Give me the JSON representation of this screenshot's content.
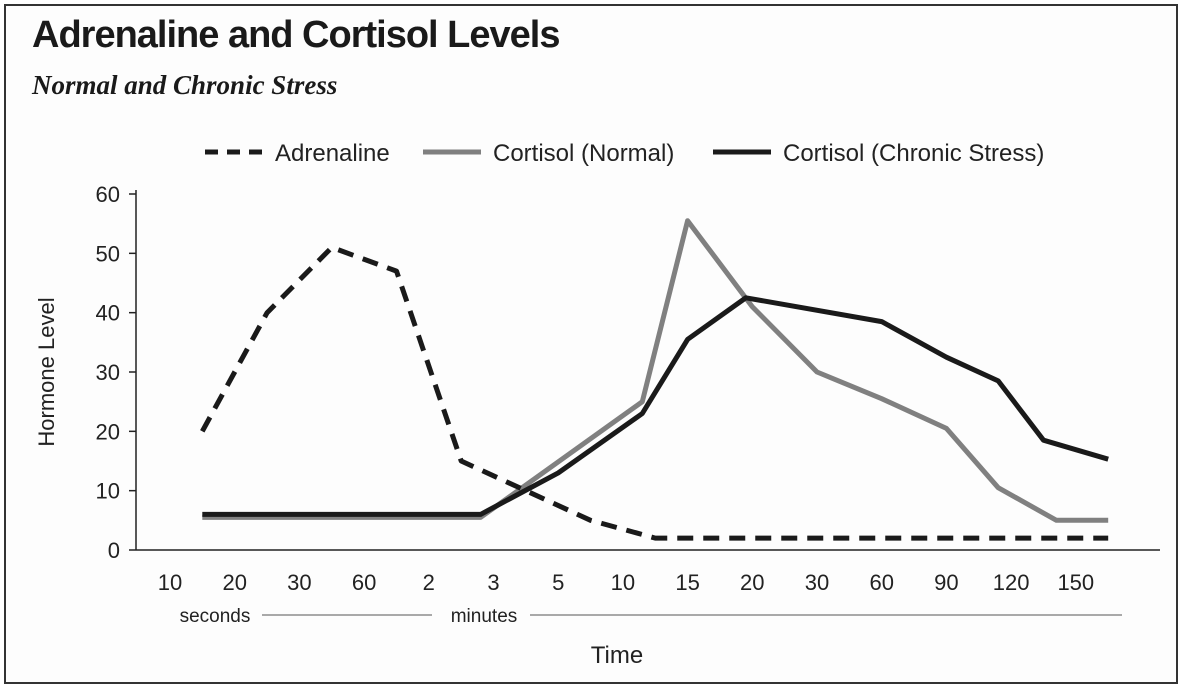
{
  "chart_data": {
    "type": "line",
    "title": "Adrenaline and Cortisol Levels",
    "subtitle": "Normal and Chronic Stress",
    "xlabel": "Time",
    "ylabel": "Hormone Level",
    "ylim": [
      0,
      60
    ],
    "y_ticks": [
      "0",
      "10",
      "20",
      "30",
      "40",
      "50",
      "60"
    ],
    "categories": [
      "10",
      "20",
      "30",
      "60",
      "2",
      "3",
      "5",
      "10",
      "15",
      "20",
      "30",
      "60",
      "90",
      "120",
      "150"
    ],
    "unit_labels": [
      "seconds",
      "minutes"
    ],
    "series": [
      {
        "name": "Adrenaline",
        "color": "#1a1a1a",
        "dash": "dashed",
        "points": [
          [
            0.5,
            20
          ],
          [
            1.5,
            40
          ],
          [
            2.5,
            51
          ],
          [
            3.5,
            47
          ],
          [
            4.5,
            15
          ],
          [
            5.5,
            10
          ],
          [
            6.5,
            5
          ],
          [
            7.5,
            2
          ],
          [
            8.5,
            2
          ],
          [
            9.5,
            2
          ],
          [
            10.5,
            2
          ],
          [
            11.5,
            2
          ],
          [
            12.5,
            2
          ],
          [
            13.5,
            2
          ],
          [
            14.5,
            2
          ]
        ]
      },
      {
        "name": "Cortisol (Normal)",
        "color": "#808080",
        "dash": "solid",
        "points": [
          [
            0.5,
            5.5
          ],
          [
            4.8,
            5.5
          ],
          [
            7.3,
            25
          ],
          [
            8.0,
            55.5
          ],
          [
            9.0,
            41
          ],
          [
            10.0,
            30
          ],
          [
            11.0,
            25.5
          ],
          [
            12.0,
            20.5
          ],
          [
            12.8,
            10.5
          ],
          [
            13.7,
            5
          ],
          [
            14.5,
            5
          ]
        ]
      },
      {
        "name": "Cortisol (Chronic Stress)",
        "color": "#1a1a1a",
        "dash": "solid",
        "points": [
          [
            0.5,
            6
          ],
          [
            4.8,
            6
          ],
          [
            6.0,
            13
          ],
          [
            7.3,
            23
          ],
          [
            8.0,
            35.5
          ],
          [
            8.9,
            42.5
          ],
          [
            11.0,
            38.5
          ],
          [
            12.0,
            32.5
          ],
          [
            12.8,
            28.5
          ],
          [
            13.5,
            18.5
          ],
          [
            14.5,
            15.3
          ]
        ]
      }
    ]
  }
}
